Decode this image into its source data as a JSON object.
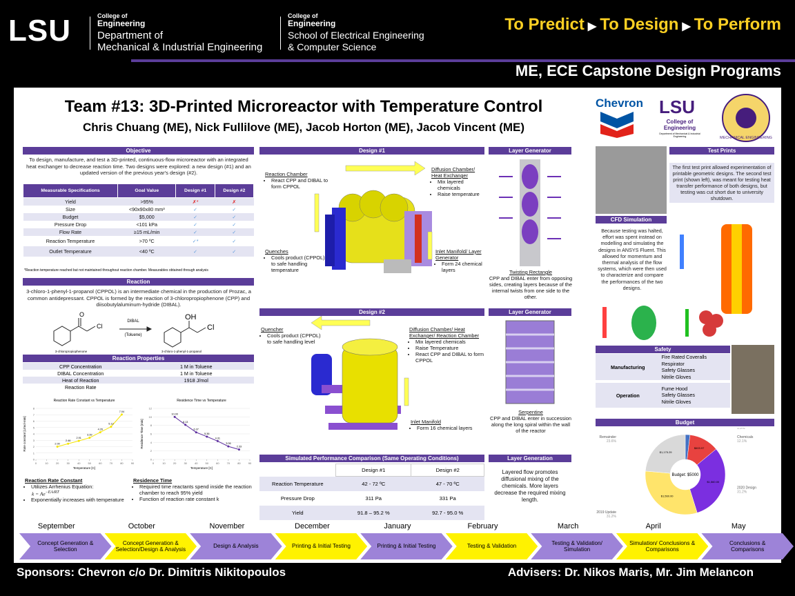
{
  "header": {
    "logo": "LSU",
    "college1": "College of",
    "college1b": "Engineering",
    "dept1": "Department of",
    "dept1b": "Mechanical & Industrial Engineering",
    "college2": "College of",
    "college2b": "Engineering",
    "dept2": "School of Electrical Engineering",
    "dept2b": "& Computer Science",
    "tagline": [
      "To Predict",
      "To Design",
      "To Perform"
    ],
    "arrow": "▶",
    "program": "ME, ECE Capstone Design Programs"
  },
  "title": "Team #13: 3D-Printed Microreactor with Temperature Control",
  "authors": "Chris Chuang (ME), Nick Fullilove (ME), Jacob Horton (ME), Jacob Vincent (ME)",
  "objective": {
    "heading": "Objective",
    "text": "To design, manufacture, and test a 3D-printed, continuous-flow microreactor with an integrated heat exchanger to decrease reaction time.  Two designs were explored: a new design (#1) and an updated version of the previous year's design (#2).",
    "table": {
      "columns": [
        "Measurable Specifications",
        "Goal Value",
        "Design #1",
        "Design #2"
      ],
      "rows": [
        [
          "Yield",
          ">95%",
          "✗*",
          "✗"
        ],
        [
          "Size",
          "<90x90x80 mm³",
          "✓",
          "✓"
        ],
        [
          "Budget",
          "$5,000",
          "✓",
          "✓"
        ],
        [
          "Pressure Drop",
          "<101 kPa",
          "✓",
          "✓"
        ],
        [
          "Flow Rate",
          "≥15 mL/min",
          "✓",
          "✓"
        ],
        [
          "Reaction Temperature",
          ">70 ºC",
          "✓*",
          "✓"
        ],
        [
          "Outlet Temperature",
          "<40 ºC",
          "✓",
          "✓"
        ]
      ]
    },
    "note": "*Reaction temperature reached but not maintained throughout reaction chamber. Measurables obtained through analysis"
  },
  "reaction": {
    "heading": "Reaction",
    "text": "3-chloro-1-phenyl-1-propanol (CPPOL) is an intermediate chemical in the production of Prozac, a common antidepressant. CPPOL is formed by the reaction of 3-chloropropiophenone (CPP) and diisobutylaluminum-hydride (DIBAL).",
    "reagent": "DIBAL",
    "solvent": "(Toluene)",
    "reactant": "3-chloropropiophenone",
    "product": "3-chloro-1-phenyl-1-propanol",
    "atoms": [
      "O",
      "Cl",
      "OH",
      "Cl"
    ],
    "properties_heading": "Reaction Properties",
    "properties": [
      [
        "CPP Concentration",
        "1 M in Toluene"
      ],
      [
        "DIBAL Concentration",
        "1 M in Toluene"
      ],
      [
        "Heat of Reaction",
        "1918 J/mol"
      ],
      [
        "Reaction Rate"
      ]
    ]
  },
  "charts": [
    {
      "type": "line",
      "title": "Reaction Rate Constant vs Temperature",
      "x_label": "Temperature [C]",
      "y_label": "Rate constant [L/mol·min]",
      "x": [
        20,
        30,
        40,
        50,
        60,
        70,
        80
      ],
      "values": [
        2.0,
        2.46,
        2.91,
        3.39,
        4.26,
        5.12,
        7.04
      ],
      "value_labels": [
        "2.00",
        "2.46",
        "2.91",
        "3.39",
        "4.26",
        "5.12",
        "7.04"
      ],
      "xlim": [
        0,
        90
      ],
      "xticks": [
        0,
        10,
        20,
        30,
        40,
        50,
        60,
        70,
        80,
        90
      ],
      "ylim": [
        0,
        8
      ],
      "yticks": [
        0,
        1,
        2,
        3,
        4,
        5,
        6,
        7,
        8
      ],
      "color": "#f5e400",
      "grid": true
    },
    {
      "type": "line",
      "title": "Residence Time vs Temperature",
      "x_label": "Temperature [C]",
      "y_label": "Residence Time [min]",
      "x": [
        20,
        30,
        40,
        50,
        60,
        70,
        80
      ],
      "values": [
        10.0,
        8.13,
        6.37,
        5.36,
        4.31,
        3.06,
        2.33
      ],
      "value_labels": [
        "10.00",
        "8.13",
        "6.37",
        "5.36",
        "4.31",
        "3.06",
        "2.33"
      ],
      "xlim": [
        0,
        90
      ],
      "xticks": [
        0,
        10,
        20,
        30,
        40,
        50,
        60,
        70,
        80,
        90
      ],
      "ylim": [
        0,
        12
      ],
      "yticks": [
        0,
        2,
        4,
        6,
        8,
        10,
        12
      ],
      "color": "#5b2d9e",
      "grid": true
    }
  ],
  "rate": {
    "heading": "Reaction Rate Constant",
    "bullets": [
      "Utilizes Arrhenius Equation:",
      "Exponentially increases with temperature"
    ],
    "equation": "k = Ae",
    "exponent": "−EA/RT"
  },
  "residence": {
    "heading": "Residence Time",
    "bullets": [
      "Required time reactants spend inside the reaction chamber to reach 95% yield",
      "Function of reaction rate constant k"
    ]
  },
  "design1": {
    "heading": "Design #1",
    "labels": [
      {
        "title": "Reaction Chamber",
        "bullets": [
          "React CPP and DIBAL to form CPPOL"
        ]
      },
      {
        "title": "Diffusion Chamber/ Heat Exchanger",
        "bullets": [
          "Mix layered chemicals",
          "Raise temperature"
        ]
      },
      {
        "title": "Quenches",
        "bullets": [
          "Cools product (CPPOL) to safe handling temperature"
        ]
      },
      {
        "title": "Inlet Manifold/ Layer Generator",
        "bullets": [
          "Form 24 chemical layers"
        ]
      }
    ]
  },
  "layer1": {
    "heading": "Layer Generator",
    "title": "Twisting Rectangle",
    "text": "CPP and DIBAL enter from opposing sides, creating layers because of the internal twists from one side to the other."
  },
  "design2": {
    "heading": "Design #2",
    "labels": [
      {
        "title": "Quencher",
        "bullets": [
          "Cools product (CPPOL) to safe handling level"
        ]
      },
      {
        "title": "Diffusion Chamber/ Heat Exchanger/ Reaction Chamber",
        "bullets": [
          "Mix layered chemicals",
          "Raise Temperature",
          "React CPP and DIBAL to form CPPOL"
        ]
      },
      {
        "title": "Inlet Manifold",
        "bullets": [
          "Form 16 chemical layers"
        ]
      }
    ]
  },
  "layer2": {
    "heading": "Layer Generator",
    "title": "Serpentine",
    "text": "CPP and DIBAL enter in succession along the long spiral within the wall of the reactor"
  },
  "comparison": {
    "heading": "Simulated Performance Comparison (Same Operating Conditions)",
    "columns": [
      "Design #1",
      "Design #2"
    ],
    "rows": [
      {
        "label": "Reaction Temperature",
        "cells": [
          "42 - 72 ºC",
          "47 - 70 ºC"
        ]
      },
      {
        "label": "Pressure Drop",
        "cells": [
          "311 Pa",
          "331 Pa"
        ]
      },
      {
        "label": "Yield",
        "cells": [
          "91.8 – 95.2 %",
          "92.7 - 95.0 %"
        ]
      }
    ]
  },
  "layer_generation": {
    "heading": "Layer Generation",
    "text": "Layered flow promotes diffusional mixing of the chemicals. More layers decrease the required mixing length."
  },
  "logos": {
    "chevron": "Chevron",
    "lsu": "LSU",
    "college": "College of Engineering",
    "dept": "Department of Mechanical & Industrial Engineering",
    "emblem": "MECHANICAL ENGINEERING"
  },
  "test_prints": {
    "heading": "Test Prints",
    "text": "The first test print allowed experimentation of printable geometric designs. The second test print (shown left), was meant for testing heat transfer performance of both designs, but testing was cut short due to university shutdown."
  },
  "cfd": {
    "heading": "CFD Simulation",
    "text": "Because testing was halted, effort was spent instead on modelling and simulating the designs in ANSYS Fluent. This allowed for momentum and thermal analysis of the flow systems, which were then used to characterize and compare the performances of the two designs."
  },
  "safety": {
    "heading": "Safety",
    "rows": [
      {
        "category": "Manufacturing",
        "items": [
          "Fire Rated Coveralls",
          "Respirator",
          "Safety Glasses",
          "Nitrile Gloves"
        ]
      },
      {
        "category": "Operation",
        "items": [
          "Fume Hood",
          "Safety Glasses",
          "Nitrile Gloves"
        ]
      }
    ]
  },
  "budget": {
    "heading": "Budget",
    "chart": {
      "type": "pie",
      "center_label": "Budget: $5000",
      "categories": [
        "Equipment",
        "Chemicals",
        "2020 Design",
        "2019 Update",
        "Remainder"
      ],
      "values": [
        1.9,
        12.1,
        31.2,
        31.2,
        23.6
      ],
      "value_labels": [
        "1.9%",
        "12.1%",
        "31.2%",
        "31.2%",
        "23.6%"
      ],
      "amounts": [
        "$92.97",
        "$603.97",
        "$1,560.00",
        "$1,560.00",
        "$1,175.29"
      ],
      "colors": [
        "#4472c4",
        "#e8423f",
        "#7b2fe0",
        "#ffe46b",
        "#d9d9d9"
      ]
    }
  },
  "timeline": {
    "months": [
      "September",
      "October",
      "November",
      "December",
      "January",
      "February",
      "March",
      "April",
      "May"
    ],
    "phases": [
      "Concept Generation & Selection",
      "Concept Generation & Selection/Design & Analysis",
      "Design & Analysis",
      "Printing & Initial Testing",
      "Printing & Initial Testing",
      "Testing & Validation",
      "Testing & Validation/ Simulation",
      "Simulation/ Conclusions & Comparisons",
      "Conclusions & Comparisons"
    ]
  },
  "footer": {
    "sponsors": "Sponsors: Chevron c/o Dr. Dimitris Nikitopoulos",
    "advisers": "Advisers: Dr. Nikos Maris, Mr. Jim Melancon"
  }
}
